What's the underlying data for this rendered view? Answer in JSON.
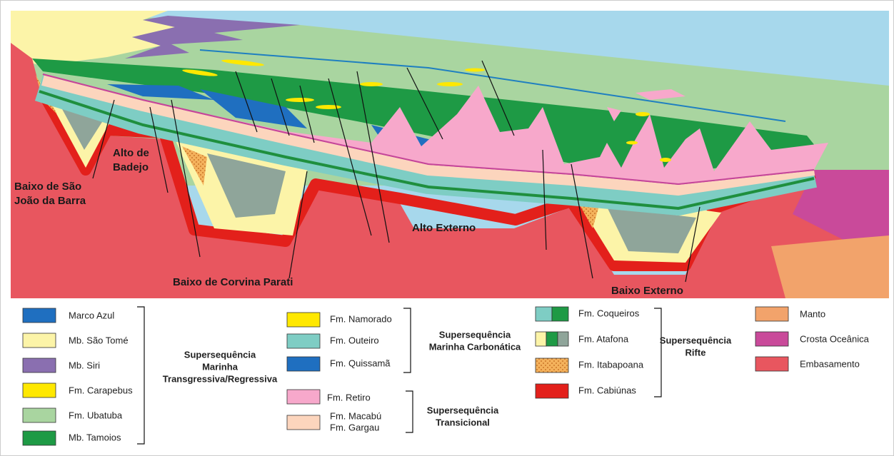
{
  "section_labels": {
    "baixo_sao_joao": [
      "Baixo de São",
      "João da Barra"
    ],
    "alto_badejo": [
      "Alto de",
      "Badejo"
    ],
    "alto_externo": "Alto Externo",
    "baixo_corvina": "Baixo de Corvina Parati",
    "baixo_externo": "Baixo Externo"
  },
  "legend": {
    "groups": [
      {
        "items": [
          "Marco Azul",
          "Mb. São Tomé",
          "Mb. Siri",
          "Fm. Carapebus",
          "Fm. Ubatuba",
          "Mb. Tamoios"
        ],
        "supersequence": [
          "Supersequência",
          "Marinha",
          "Transgressiva/Regressiva"
        ]
      },
      {
        "items": [
          "Fm. Namorado",
          "Fm. Outeiro",
          "Fm. Quissamã"
        ],
        "supersequence": [
          "Supersequência",
          "Marinha Carbonática"
        ]
      },
      {
        "items": [
          "Fm. Retiro",
          [
            "Fm. Macabú",
            "Fm. Gargau"
          ]
        ],
        "supersequence": [
          "Supersequência",
          "Transicional"
        ]
      },
      {
        "items": [
          "Fm. Coqueiros",
          "Fm. Atafona",
          "Fm. Itabapoana",
          "Fm. Cabiúnas"
        ],
        "supersequence": [
          "Supersequência",
          "Rifte"
        ]
      }
    ],
    "other": [
      "Manto",
      "Crosta Oceânica",
      "Embasamento"
    ]
  }
}
